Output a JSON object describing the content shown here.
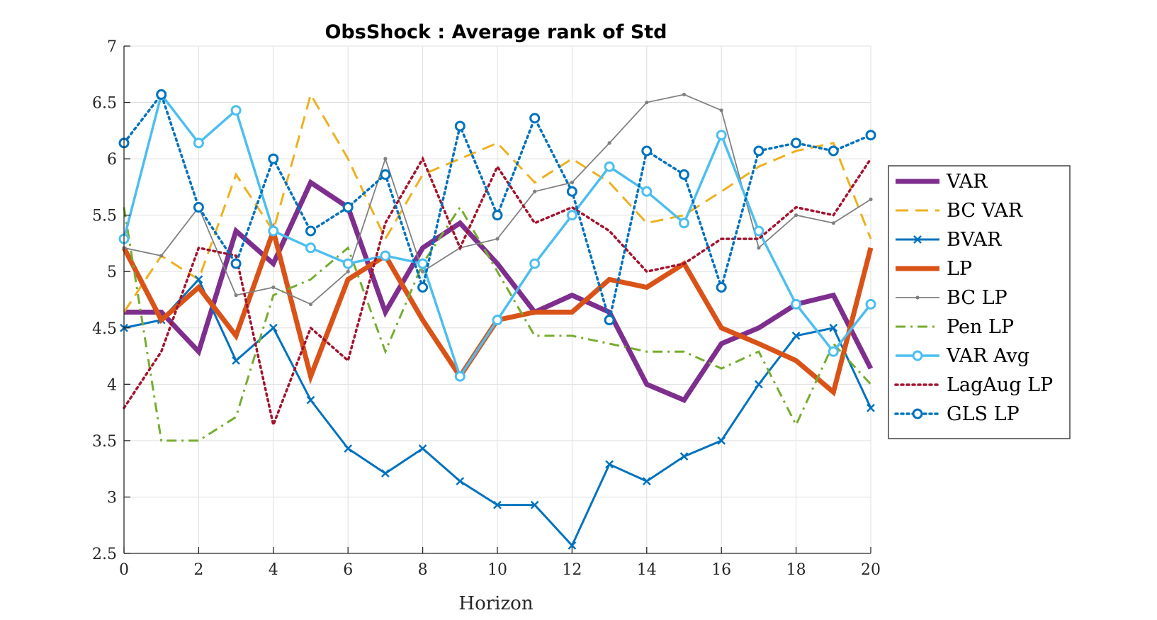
{
  "chart_data": {
    "type": "line",
    "title": "ObsShock : Average rank of Std",
    "xlabel": "Horizon",
    "ylabel": "",
    "xlim": [
      0,
      20
    ],
    "ylim": [
      2.5,
      7
    ],
    "xticks": [
      0,
      2,
      4,
      6,
      8,
      10,
      12,
      14,
      16,
      18,
      20
    ],
    "yticks": [
      2.5,
      3,
      3.5,
      4,
      4.5,
      5,
      5.5,
      6,
      6.5,
      7
    ],
    "xtick_labels": [
      "0",
      "2",
      "4",
      "6",
      "8",
      "10",
      "12",
      "14",
      "16",
      "18",
      "20"
    ],
    "ytick_labels": [
      "2.5",
      "3",
      "3.5",
      "4",
      "4.5",
      "5",
      "5.5",
      "6",
      "6.5",
      "7"
    ],
    "grid": true,
    "legend_position": "right",
    "x": [
      0,
      1,
      2,
      3,
      4,
      5,
      6,
      7,
      8,
      9,
      10,
      11,
      12,
      13,
      14,
      15,
      16,
      17,
      18,
      19,
      20
    ],
    "series": [
      {
        "name": "VAR",
        "color": "#7E2F8E",
        "style": "solid",
        "width": 7,
        "marker": "none",
        "values": [
          4.64,
          4.64,
          4.29,
          5.36,
          5.07,
          5.79,
          5.57,
          4.64,
          5.21,
          5.43,
          5.07,
          4.64,
          4.79,
          4.64,
          4.0,
          3.86,
          4.36,
          4.5,
          4.71,
          4.79,
          4.14
        ]
      },
      {
        "name": "BC VAR",
        "color": "#EDB120",
        "style": "dashed",
        "width": 3,
        "marker": "none",
        "values": [
          4.64,
          5.14,
          4.93,
          5.86,
          5.36,
          6.57,
          6.0,
          5.29,
          5.86,
          6.0,
          6.14,
          5.79,
          6.0,
          5.79,
          5.43,
          5.5,
          5.71,
          5.93,
          6.07,
          6.14,
          5.29
        ]
      },
      {
        "name": "BVAR",
        "color": "#0072BD",
        "style": "solid",
        "width": 3,
        "marker": "x",
        "values": [
          4.5,
          4.57,
          4.93,
          4.21,
          4.5,
          3.86,
          3.43,
          3.21,
          3.43,
          3.14,
          2.93,
          2.93,
          2.57,
          3.29,
          3.14,
          3.36,
          3.5,
          4.0,
          4.43,
          4.5,
          3.79
        ]
      },
      {
        "name": "LP",
        "color": "#D95319",
        "style": "solid",
        "width": 7,
        "marker": "none",
        "values": [
          5.21,
          4.57,
          4.86,
          4.43,
          5.36,
          4.07,
          4.93,
          5.14,
          4.57,
          4.07,
          4.57,
          4.64,
          4.64,
          4.93,
          4.86,
          5.07,
          4.5,
          4.36,
          4.21,
          3.93,
          5.21
        ]
      },
      {
        "name": "BC LP",
        "color": "#808080",
        "style": "solid",
        "width": 1.8,
        "marker": "dot",
        "values": [
          5.21,
          5.14,
          5.57,
          4.79,
          4.86,
          4.71,
          5.0,
          6.0,
          5.0,
          5.21,
          5.29,
          5.71,
          5.79,
          6.14,
          6.5,
          6.57,
          6.43,
          5.21,
          5.5,
          5.43,
          5.64
        ]
      },
      {
        "name": "Pen LP",
        "color": "#77AC30",
        "style": "dashdot",
        "width": 3,
        "marker": "none",
        "values": [
          5.57,
          3.5,
          3.5,
          3.71,
          4.79,
          4.93,
          5.21,
          4.29,
          5.07,
          5.57,
          5.0,
          4.43,
          4.43,
          4.36,
          4.29,
          4.29,
          4.14,
          4.29,
          3.64,
          4.36,
          4.0
        ]
      },
      {
        "name": "VAR Avg",
        "color": "#4DBEEE",
        "style": "solid",
        "width": 3.5,
        "marker": "circle",
        "values": [
          5.29,
          6.57,
          6.14,
          6.43,
          5.36,
          5.21,
          5.07,
          5.14,
          5.07,
          4.07,
          4.57,
          5.07,
          5.5,
          5.93,
          5.71,
          5.43,
          6.21,
          5.36,
          4.71,
          4.29,
          4.71
        ]
      },
      {
        "name": "LagAug LP",
        "color": "#A2142F",
        "style": "dotted",
        "width": 3.5,
        "marker": "none",
        "values": [
          3.79,
          4.29,
          5.21,
          5.14,
          3.64,
          4.5,
          4.21,
          5.43,
          6.0,
          5.21,
          5.93,
          5.43,
          5.57,
          5.36,
          5.0,
          5.07,
          5.29,
          5.29,
          5.57,
          5.5,
          6.0
        ]
      },
      {
        "name": "GLS LP",
        "color": "#0072BD",
        "style": "dotted",
        "width": 3.5,
        "marker": "circle",
        "values": [
          6.14,
          6.57,
          5.57,
          5.07,
          6.0,
          5.36,
          5.57,
          5.86,
          4.86,
          6.29,
          5.5,
          6.36,
          5.71,
          4.57,
          6.07,
          5.86,
          4.86,
          6.07,
          6.14,
          6.07,
          6.21
        ]
      }
    ]
  }
}
